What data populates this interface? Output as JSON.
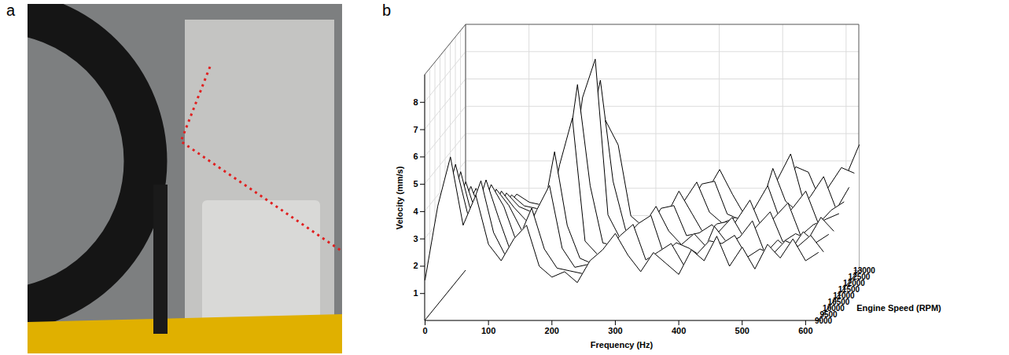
{
  "photo": {
    "panel": "a"
  },
  "chart_data": {
    "type": "waterfall",
    "panel": "b",
    "x_label": "Frequency (Hz)",
    "y_label": "Velocity (mm/s)",
    "z_label": "Engine Speed (RPM)",
    "color": "#000000",
    "grid": true,
    "xlim": [
      0,
      620
    ],
    "xticks": [
      0,
      100,
      200,
      300,
      400,
      500,
      600
    ],
    "ylim": [
      0,
      9
    ],
    "yticks": [
      1,
      2,
      3,
      4,
      5,
      6,
      7,
      8
    ],
    "zlim": [
      9000,
      13000
    ],
    "zticks": [
      9000,
      9500,
      10000,
      10500,
      11000,
      11500,
      12000,
      12500,
      13000
    ],
    "x": [
      0,
      20,
      40,
      60,
      80,
      100,
      120,
      140,
      160,
      180,
      200,
      220,
      240,
      260,
      280,
      300,
      320,
      340,
      360,
      380,
      400,
      420,
      440,
      460,
      480,
      500,
      520,
      540,
      560,
      580,
      600,
      620
    ],
    "series": [
      {
        "z": 9000,
        "values": [
          1.5,
          4.2,
          6.0,
          3.5,
          4.6,
          2.8,
          2.2,
          3.0,
          3.5,
          2.0,
          1.6,
          1.8,
          1.4,
          2.2,
          2.6,
          3.2,
          2.4,
          1.8,
          2.5,
          2.1,
          1.7,
          2.6,
          2.2,
          3.1,
          2.0,
          2.7,
          1.9,
          2.8,
          2.3,
          3.0,
          2.2,
          2.5
        ]
      },
      {
        "z": 9500,
        "values": [
          1.4,
          3.8,
          5.5,
          3.6,
          4.9,
          3.0,
          2.1,
          2.8,
          3.9,
          2.4,
          1.7,
          1.6,
          1.5,
          2.0,
          2.4,
          2.9,
          3.3,
          2.0,
          2.3,
          2.6,
          1.8,
          2.2,
          2.7,
          2.6,
          2.9,
          2.1,
          2.4,
          2.2,
          2.7,
          2.5,
          2.9,
          2.3
        ]
      },
      {
        "z": 10000,
        "values": [
          1.3,
          3.5,
          5.0,
          3.2,
          4.7,
          3.3,
          2.0,
          2.6,
          3.6,
          4.5,
          2.2,
          1.5,
          1.6,
          1.9,
          2.2,
          2.6,
          3.1,
          3.4,
          2.0,
          2.4,
          2.2,
          1.9,
          3.0,
          2.4,
          2.6,
          3.2,
          2.0,
          2.5,
          2.1,
          2.8,
          2.4,
          2.7
        ]
      },
      {
        "z": 10500,
        "values": [
          1.2,
          3.2,
          4.4,
          3.0,
          4.3,
          3.5,
          2.2,
          2.4,
          3.0,
          5.5,
          2.8,
          1.6,
          1.4,
          1.8,
          2.0,
          2.3,
          2.8,
          3.5,
          2.6,
          2.1,
          2.5,
          2.0,
          2.6,
          3.1,
          2.3,
          2.8,
          3.3,
          2.2,
          2.5,
          2.3,
          3.1,
          2.6
        ]
      },
      {
        "z": 11000,
        "values": [
          1.2,
          3.0,
          4.0,
          2.8,
          3.9,
          3.3,
          2.4,
          2.2,
          2.6,
          4.8,
          6.5,
          2.0,
          1.5,
          1.7,
          1.9,
          2.1,
          2.5,
          3.2,
          3.3,
          2.2,
          2.3,
          2.6,
          2.1,
          2.8,
          3.5,
          2.4,
          2.9,
          3.4,
          2.2,
          2.6,
          2.8,
          3.0
        ]
      },
      {
        "z": 11500,
        "values": [
          1.1,
          2.7,
          3.7,
          2.6,
          3.6,
          3.0,
          2.5,
          2.1,
          2.4,
          4.2,
          7.5,
          3.8,
          1.7,
          1.6,
          1.8,
          2.0,
          2.3,
          2.7,
          3.6,
          2.8,
          2.0,
          2.4,
          2.5,
          2.2,
          3.0,
          3.8,
          2.5,
          3.0,
          3.6,
          2.4,
          2.9,
          3.2
        ]
      },
      {
        "z": 12000,
        "values": [
          1.1,
          2.5,
          3.4,
          2.4,
          3.3,
          2.8,
          2.6,
          2.2,
          2.3,
          3.5,
          6.8,
          8.2,
          2.5,
          1.6,
          1.7,
          1.9,
          2.1,
          2.4,
          3.0,
          3.7,
          2.6,
          2.2,
          2.4,
          2.3,
          2.7,
          4.2,
          3.0,
          2.6,
          3.2,
          3.9,
          2.7,
          3.5
        ]
      },
      {
        "z": 12500,
        "values": [
          1.0,
          2.3,
          3.1,
          2.3,
          3.0,
          2.6,
          2.5,
          2.3,
          2.2,
          3.0,
          5.0,
          7.2,
          3.5,
          1.7,
          1.6,
          1.8,
          2.0,
          2.2,
          2.6,
          3.4,
          3.5,
          2.3,
          2.1,
          2.5,
          2.4,
          3.6,
          4.5,
          2.8,
          2.7,
          3.3,
          4.0,
          3.8
        ]
      },
      {
        "z": 13000,
        "values": [
          1.0,
          2.1,
          2.8,
          2.2,
          2.8,
          2.5,
          2.4,
          2.4,
          2.1,
          2.6,
          3.8,
          5.5,
          4.6,
          2.0,
          1.6,
          1.7,
          1.9,
          2.1,
          2.3,
          2.9,
          3.7,
          2.8,
          2.0,
          2.3,
          2.2,
          2.9,
          3.8,
          3.6,
          2.5,
          2.8,
          3.5,
          4.6
        ]
      }
    ]
  }
}
